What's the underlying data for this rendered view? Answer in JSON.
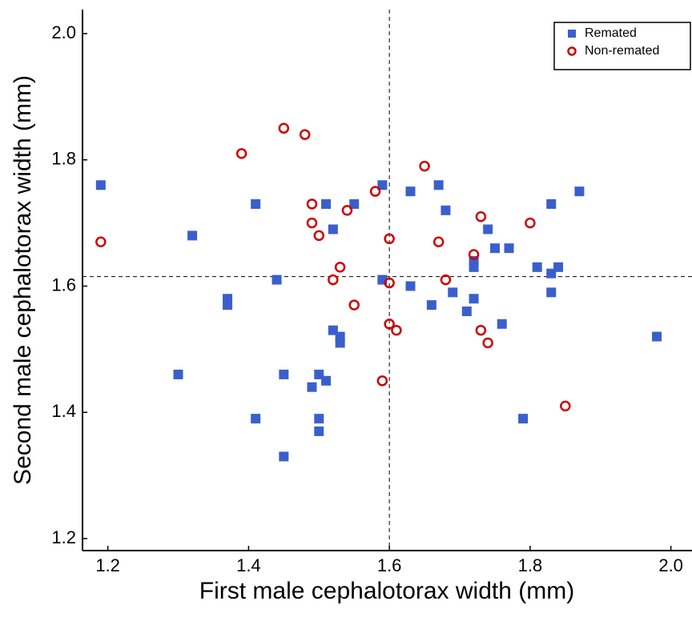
{
  "chart_data": {
    "type": "scatter",
    "xlabel": "First male cephalotorax width (mm)",
    "ylabel": "Second male cephalotorax width (mm)",
    "xlim": [
      1.164,
      2.03
    ],
    "ylim": [
      1.181,
      2.038
    ],
    "xticks": [
      1.2,
      1.4,
      1.6,
      1.8,
      {
        "value": 2,
        "label": "2.0"
      }
    ],
    "yticks": [
      1.2,
      1.4,
      1.6,
      1.8,
      {
        "value": 2,
        "label": "2.0"
      }
    ],
    "vlines": [
      1.6
    ],
    "hlines": [
      1.615
    ],
    "legend": "upper right",
    "series": [
      {
        "name": "Remated",
        "color": "#3a5fcd",
        "marker": "square",
        "x": [
          1.19,
          1.32,
          1.3,
          1.37,
          1.37,
          1.41,
          1.41,
          1.44,
          1.45,
          1.45,
          1.49,
          1.5,
          1.5,
          1.5,
          1.51,
          1.51,
          1.52,
          1.52,
          1.53,
          1.53,
          1.55,
          1.59,
          1.59,
          1.63,
          1.63,
          1.66,
          1.67,
          1.68,
          1.69,
          1.71,
          1.72,
          1.72,
          1.72,
          1.74,
          1.75,
          1.76,
          1.77,
          1.79,
          1.81,
          1.83,
          1.83,
          1.83,
          1.84,
          1.87,
          1.98
        ],
        "y": [
          1.76,
          1.68,
          1.46,
          1.58,
          1.57,
          1.73,
          1.39,
          1.61,
          1.46,
          1.33,
          1.44,
          1.46,
          1.39,
          1.37,
          1.45,
          1.73,
          1.69,
          1.53,
          1.52,
          1.51,
          1.73,
          1.76,
          1.61,
          1.75,
          1.6,
          1.57,
          1.76,
          1.72,
          1.59,
          1.56,
          1.64,
          1.63,
          1.58,
          1.69,
          1.66,
          1.54,
          1.66,
          1.39,
          1.63,
          1.73,
          1.62,
          1.59,
          1.63,
          1.75,
          1.52
        ]
      },
      {
        "name": "Non-remated",
        "color": "#cc0000",
        "marker": "circle",
        "x": [
          1.19,
          1.39,
          1.45,
          1.48,
          1.49,
          1.49,
          1.5,
          1.52,
          1.53,
          1.54,
          1.55,
          1.58,
          1.59,
          1.6,
          1.6,
          1.6,
          1.61,
          1.65,
          1.67,
          1.68,
          1.72,
          1.73,
          1.73,
          1.74,
          1.8,
          1.85
        ],
        "y": [
          1.67,
          1.81,
          1.85,
          1.84,
          1.73,
          1.7,
          1.68,
          1.61,
          1.63,
          1.72,
          1.57,
          1.75,
          1.45,
          1.675,
          1.605,
          1.54,
          1.53,
          1.79,
          1.67,
          1.61,
          1.65,
          1.71,
          1.53,
          1.51,
          1.7,
          1.41
        ]
      }
    ]
  }
}
